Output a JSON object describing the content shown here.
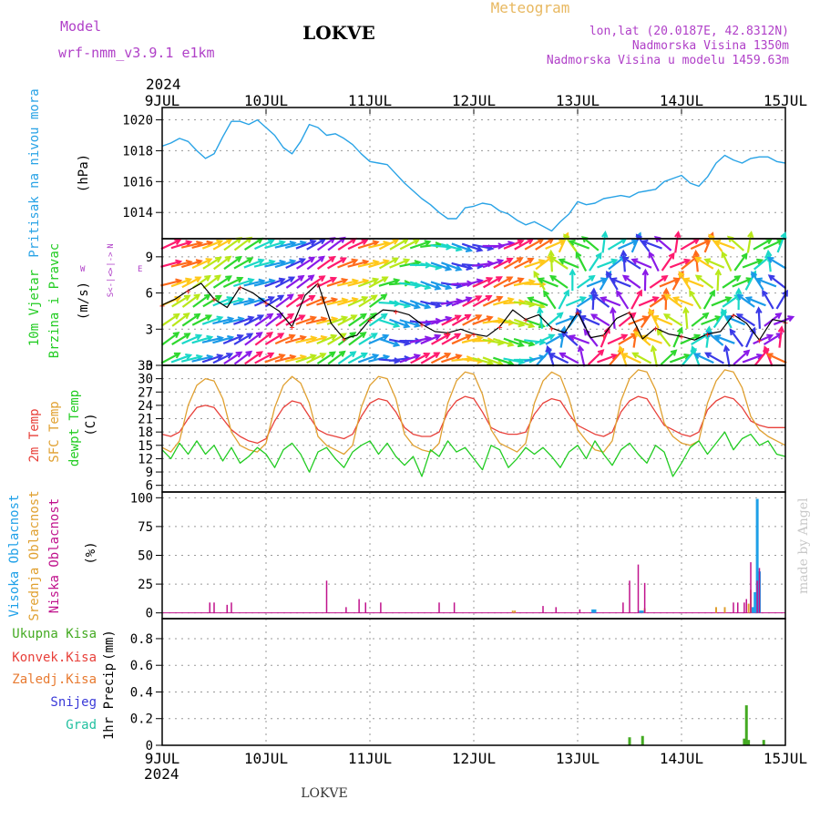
{
  "header": {
    "model_label": "Model",
    "model_name": "wrf-nmm_v3.9.1  e1km",
    "station": "LOKVE",
    "product": "Meteogram",
    "coords": "lon,lat (20.0187E, 42.8312N)",
    "altitude": "Nadmorska Visina 1350m",
    "model_altitude": "Nadmorska Visina u modelu 1459.63m",
    "credit": "made by Angel",
    "footer_station": "LOKVE"
  },
  "time_axis": {
    "year": "2024",
    "labels": [
      "9JUL",
      "10JUL",
      "11JUL",
      "12JUL",
      "13JUL",
      "14JUL",
      "15JUL"
    ],
    "range_hours": [
      0,
      144
    ]
  },
  "colors": {
    "pressure": "#29a3e6",
    "t2m": "#e8403a",
    "sfc": "#e0a030",
    "dewpt": "#22cc22",
    "high_cloud": "#1ea0e8",
    "mid_cloud": "#e0a030",
    "low_cloud": "#c0128c",
    "total_precip": "#44aa22",
    "conv_precip": "#e8403a",
    "snow": "#3a3ad8",
    "frozen": "#e87a30",
    "hail": "#22c0a0",
    "wind_line": "#000000",
    "wind_marker": "#ff2020",
    "title": "#000000",
    "model": "#b040c8",
    "meteogram": "#e8b860",
    "credit": "#c8c8c8"
  },
  "chart_data": [
    {
      "id": "pressure",
      "type": "line",
      "ylabel": "Pritisak na nivou mora",
      "unit": "(hPa)",
      "ylim": [
        1012.3,
        1020.8
      ],
      "yticks": [
        1014,
        1016,
        1018,
        1020
      ],
      "x": [
        0,
        2,
        4,
        6,
        8,
        10,
        12,
        14,
        16,
        18,
        20,
        22,
        24,
        26,
        28,
        30,
        32,
        34,
        36,
        38,
        40,
        42,
        44,
        46,
        48,
        50,
        52,
        54,
        56,
        58,
        60,
        62,
        64,
        66,
        68,
        70,
        72,
        74,
        76,
        78,
        80,
        82,
        84,
        86,
        88,
        90,
        92,
        94,
        96,
        98,
        100,
        102,
        104,
        106,
        108,
        110,
        112,
        114,
        116,
        118,
        120,
        122,
        124,
        126,
        128,
        130,
        132,
        134,
        136,
        138,
        140,
        142,
        144
      ],
      "y": [
        1018.3,
        1018.5,
        1018.8,
        1018.6,
        1018.0,
        1017.5,
        1017.8,
        1018.9,
        1019.9,
        1019.9,
        1019.7,
        1020.0,
        1019.5,
        1019.0,
        1018.2,
        1017.8,
        1018.6,
        1019.7,
        1019.5,
        1019.0,
        1019.1,
        1018.8,
        1018.4,
        1017.8,
        1017.3,
        1017.2,
        1017.1,
        1016.5,
        1015.9,
        1015.4,
        1014.9,
        1014.5,
        1014.0,
        1013.6,
        1013.6,
        1014.3,
        1014.4,
        1014.6,
        1014.5,
        1014.1,
        1013.9,
        1013.5,
        1013.2,
        1013.4,
        1013.1,
        1012.8,
        1013.4,
        1013.9,
        1014.7,
        1014.5,
        1014.6,
        1014.9,
        1015.0,
        1015.1,
        1015.0,
        1015.3,
        1015.4,
        1015.5,
        1016.0,
        1016.2,
        1016.4,
        1015.9,
        1015.7,
        1016.3,
        1017.2,
        1017.7,
        1017.4,
        1017.2,
        1017.5,
        1017.6,
        1017.6,
        1017.3,
        1017.2
      ]
    },
    {
      "id": "wind",
      "type": "line",
      "ylabel": "10m Vjetar",
      "ylabel2": "Brzina i Pravac",
      "unit": "(m/s)",
      "ylim": [
        0,
        10.5
      ],
      "yticks": [
        0,
        3,
        6,
        9
      ],
      "direction_key": "N",
      "direction_west": "W",
      "direction_east": "E",
      "direction_arrows": "<-|->",
      "direction_bottom": "S<-|->",
      "x": [
        0,
        3,
        6,
        9,
        12,
        15,
        18,
        21,
        24,
        27,
        30,
        33,
        36,
        39,
        42,
        45,
        48,
        51,
        54,
        57,
        60,
        63,
        66,
        69,
        72,
        75,
        78,
        81,
        84,
        87,
        90,
        93,
        96,
        99,
        102,
        105,
        108,
        111,
        114,
        117,
        120,
        123,
        126,
        129,
        132,
        135,
        138,
        141,
        144
      ],
      "speed": [
        5.0,
        5.5,
        6.2,
        6.8,
        5.5,
        4.8,
        6.5,
        6.0,
        5.2,
        4.5,
        3.2,
        5.8,
        6.8,
        3.5,
        2.2,
        2.5,
        3.8,
        4.6,
        4.5,
        4.2,
        3.4,
        2.8,
        2.7,
        3.0,
        2.6,
        2.4,
        3.2,
        4.6,
        3.8,
        4.2,
        3.1,
        2.7,
        4.4,
        2.3,
        2.5,
        3.9,
        4.4,
        2.2,
        3.1,
        2.6,
        2.4,
        2.1,
        2.6,
        2.8,
        4.2,
        3.5,
        2.1,
        3.8,
        3.6
      ]
    },
    {
      "id": "temperature",
      "type": "line",
      "ylabel": "2m Temp",
      "ylabel_sfc": "SFC Temp",
      "ylabel_dew": "dewpt Temp",
      "unit": "(C)",
      "ylim": [
        4.5,
        33
      ],
      "yticks": [
        6,
        9,
        12,
        15,
        18,
        21,
        24,
        27,
        30,
        33
      ],
      "x": [
        0,
        2,
        4,
        6,
        8,
        10,
        12,
        14,
        16,
        18,
        20,
        22,
        24,
        26,
        28,
        30,
        32,
        34,
        36,
        38,
        40,
        42,
        44,
        46,
        48,
        50,
        52,
        54,
        56,
        58,
        60,
        62,
        64,
        66,
        68,
        70,
        72,
        74,
        76,
        78,
        80,
        82,
        84,
        86,
        88,
        90,
        92,
        94,
        96,
        98,
        100,
        102,
        104,
        106,
        108,
        110,
        112,
        114,
        116,
        118,
        120,
        122,
        124,
        126,
        128,
        130,
        132,
        134,
        136,
        138,
        140,
        142,
        144
      ],
      "series": [
        {
          "id": "t2m",
          "values": [
            17.5,
            17.0,
            18.0,
            21.0,
            23.5,
            24.0,
            23.5,
            21.0,
            18.5,
            17.0,
            16.0,
            15.5,
            16.5,
            20.5,
            23.5,
            25.0,
            24.5,
            21.5,
            18.5,
            17.5,
            17.0,
            16.5,
            17.5,
            21.5,
            24.5,
            25.5,
            25.0,
            22.5,
            19.0,
            17.5,
            17.0,
            17.0,
            18.0,
            22.5,
            25.0,
            26.0,
            25.5,
            22.5,
            19.0,
            18.0,
            17.5,
            17.5,
            18.0,
            22.0,
            24.5,
            25.5,
            25.0,
            22.0,
            19.5,
            18.5,
            17.5,
            17.0,
            18.0,
            22.5,
            25.0,
            26.0,
            25.5,
            22.5,
            19.5,
            18.5,
            17.5,
            17.0,
            18.0,
            23.0,
            25.0,
            26.0,
            25.5,
            23.5,
            20.5,
            19.5,
            19.0,
            19.0,
            19.0
          ]
        },
        {
          "id": "sfc",
          "values": [
            14.5,
            13.5,
            16.0,
            24.0,
            28.5,
            30.0,
            29.5,
            25.5,
            18.0,
            15.0,
            14.0,
            13.5,
            15.5,
            23.5,
            28.5,
            30.5,
            29.0,
            24.5,
            17.0,
            15.0,
            14.0,
            13.0,
            15.0,
            23.5,
            28.5,
            30.5,
            30.0,
            25.5,
            17.5,
            15.0,
            14.0,
            13.5,
            15.5,
            24.5,
            29.5,
            31.5,
            31.0,
            26.5,
            18.5,
            15.5,
            14.5,
            13.5,
            15.5,
            24.5,
            29.5,
            31.5,
            30.5,
            25.5,
            18.5,
            16.0,
            14.0,
            13.5,
            16.0,
            25.0,
            30.0,
            32.0,
            31.5,
            27.5,
            20.0,
            17.0,
            15.5,
            15.0,
            16.0,
            24.5,
            29.5,
            32.0,
            31.5,
            28.0,
            21.5,
            18.5,
            17.0,
            16.0,
            15.0
          ]
        },
        {
          "id": "dewpt",
          "values": [
            14.0,
            12.0,
            15.5,
            13.0,
            16.0,
            13.0,
            15.0,
            11.5,
            14.5,
            11.0,
            12.5,
            14.5,
            13.0,
            10.0,
            14.0,
            15.5,
            13.0,
            9.0,
            13.5,
            14.5,
            12.0,
            10.0,
            13.5,
            15.0,
            16.0,
            13.0,
            15.5,
            12.5,
            10.5,
            12.5,
            8.0,
            14.0,
            12.5,
            16.0,
            13.5,
            14.5,
            12.0,
            9.5,
            15.0,
            14.0,
            10.0,
            12.0,
            14.5,
            13.0,
            14.5,
            12.5,
            10.0,
            13.5,
            15.0,
            12.0,
            16.0,
            13.0,
            10.5,
            14.0,
            15.5,
            13.0,
            11.0,
            15.0,
            13.5,
            8.0,
            11.0,
            14.5,
            16.0,
            13.0,
            15.5,
            18.0,
            14.0,
            16.5,
            17.5,
            15.0,
            16.0,
            13.0,
            12.5
          ]
        }
      ]
    },
    {
      "id": "clouds",
      "type": "bar",
      "ylabel_high": "Visoka Oblacnost",
      "ylabel_mid": "Srednja Oblacnost",
      "ylabel_low": "Niska Oblacnost",
      "unit": "(%)",
      "ylim": [
        -5,
        105
      ],
      "yticks": [
        0,
        25,
        50,
        75,
        100
      ],
      "series": [
        {
          "id": "high",
          "x": [
            99.5,
            100.0,
            110.5,
            111.0,
            136.5,
            137.0,
            137.5,
            138.0
          ],
          "values": [
            3,
            3,
            2,
            2,
            5,
            18,
            99,
            36
          ]
        },
        {
          "id": "mid",
          "x": [
            81.0,
            81.5,
            111.5,
            128.0,
            130.0,
            135.5,
            136.0
          ],
          "values": [
            2,
            2,
            4,
            5,
            5,
            8,
            20
          ]
        },
        {
          "id": "low",
          "x": [
            11.0,
            12.0,
            15.0,
            16.0,
            38.0,
            42.5,
            45.5,
            47.0,
            50.5,
            64.0,
            67.5,
            88.0,
            91.0,
            96.5,
            106.5,
            108.0,
            110.0,
            111.5,
            132.0,
            133.0,
            134.5,
            135.0,
            136.0,
            137.5,
            138.0
          ],
          "values": [
            9,
            9,
            7,
            9,
            28,
            5,
            12,
            9,
            9,
            9,
            9,
            6,
            5,
            3,
            9,
            28,
            42,
            26,
            9,
            9,
            9,
            12,
            44,
            28,
            39
          ]
        }
      ]
    },
    {
      "id": "precip",
      "type": "bar",
      "ylabel": "1hr Precip",
      "unit": "(mm)",
      "legend": [
        "Ukupna Kisa",
        "Konvek.Kisa",
        "Zaledj.Kisa",
        "Snijeg",
        "Grad"
      ],
      "ylim": [
        0,
        0.95
      ],
      "yticks": [
        0,
        0.2,
        0.4,
        0.6,
        0.8
      ],
      "x": [
        108.0,
        111.0,
        134.5,
        135.0,
        135.5,
        139.0
      ],
      "values": [
        0.06,
        0.07,
        0.05,
        0.3,
        0.04,
        0.04
      ]
    }
  ]
}
